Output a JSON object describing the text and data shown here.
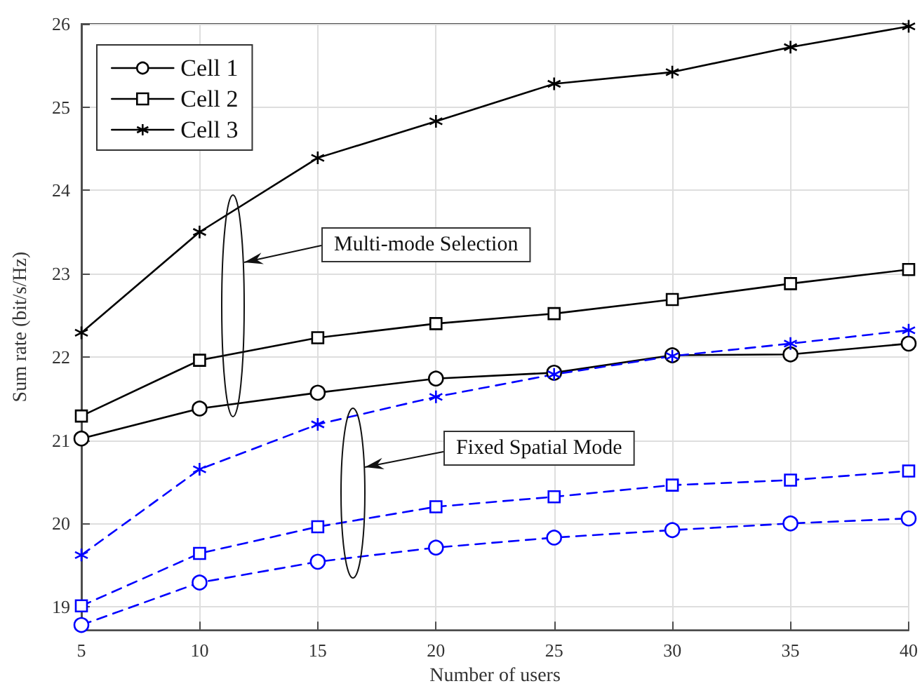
{
  "chart_data": {
    "type": "line",
    "xlabel": "Number of users",
    "ylabel": "Sum rate (bit/s/Hz)",
    "x": [
      5,
      10,
      15,
      20,
      25,
      30,
      35,
      40
    ],
    "xlim": [
      5,
      40
    ],
    "xticks": [
      5,
      10,
      15,
      20,
      25,
      30,
      35,
      40
    ],
    "ylim": [
      18.72,
      26
    ],
    "yticks": [
      19,
      20,
      21,
      22,
      23,
      24,
      25,
      26
    ],
    "grid": true,
    "legend": "top left",
    "annotations": [
      "Multi-mode Selection",
      "Fixed Spatial Mode"
    ],
    "series": [
      {
        "name": "Cell 1",
        "color": "#000000",
        "marker": "circle",
        "line_style": "solid",
        "values": [
          21.02,
          21.38,
          21.57,
          21.74,
          21.81,
          22.02,
          22.03,
          22.16
        ]
      },
      {
        "name": "Cell 2",
        "color": "#000000",
        "marker": "square",
        "line_style": "solid",
        "values": [
          21.29,
          21.96,
          22.23,
          22.4,
          22.52,
          22.69,
          22.88,
          23.05
        ]
      },
      {
        "name": "Cell 3",
        "color": "#000000",
        "marker": "cross",
        "line_style": "solid",
        "values": [
          22.29,
          23.5,
          24.39,
          24.83,
          25.28,
          25.42,
          25.72,
          25.97
        ]
      },
      {
        "color": "#0000ff",
        "marker": "circle",
        "line_style": "dashed",
        "values": [
          18.78,
          19.29,
          19.54,
          19.71,
          19.83,
          19.92,
          20.0,
          20.06
        ]
      },
      {
        "color": "#0000ff",
        "marker": "square",
        "line_style": "dashed",
        "values": [
          19.01,
          19.64,
          19.96,
          20.2,
          20.32,
          20.46,
          20.52,
          20.63
        ]
      },
      {
        "color": "#0000ff",
        "marker": "cross",
        "line_style": "dashed",
        "values": [
          19.62,
          20.65,
          21.19,
          21.52,
          21.79,
          22.01,
          22.16,
          22.32
        ]
      }
    ]
  }
}
